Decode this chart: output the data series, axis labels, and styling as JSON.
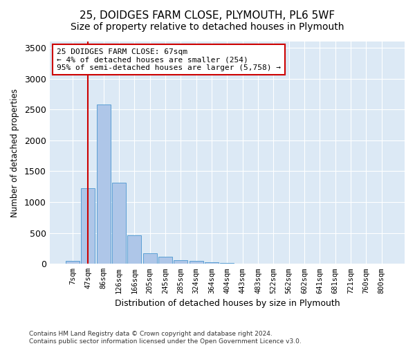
{
  "title": "25, DOIDGES FARM CLOSE, PLYMOUTH, PL6 5WF",
  "subtitle": "Size of property relative to detached houses in Plymouth",
  "xlabel": "Distribution of detached houses by size in Plymouth",
  "ylabel": "Number of detached properties",
  "categories": [
    "7sqm",
    "47sqm",
    "86sqm",
    "126sqm",
    "166sqm",
    "205sqm",
    "245sqm",
    "285sqm",
    "324sqm",
    "364sqm",
    "404sqm",
    "443sqm",
    "483sqm",
    "522sqm",
    "562sqm",
    "602sqm",
    "641sqm",
    "681sqm",
    "721sqm",
    "760sqm",
    "800sqm"
  ],
  "bar_values": [
    50,
    1220,
    2580,
    1310,
    460,
    175,
    110,
    60,
    45,
    30,
    15,
    5,
    0,
    0,
    0,
    0,
    0,
    0,
    0,
    0,
    0
  ],
  "bar_color": "#aec6e8",
  "bar_edgecolor": "#5a9fd4",
  "vline_x": 1.0,
  "vline_color": "#cc0000",
  "annotation_text": "25 DOIDGES FARM CLOSE: 67sqm\n← 4% of detached houses are smaller (254)\n95% of semi-detached houses are larger (5,758) →",
  "annotation_box_color": "#ffffff",
  "annotation_box_edgecolor": "#cc0000",
  "ylim": [
    0,
    3600
  ],
  "yticks": [
    0,
    500,
    1000,
    1500,
    2000,
    2500,
    3000,
    3500
  ],
  "bg_color": "#dce9f5",
  "footer_line1": "Contains HM Land Registry data © Crown copyright and database right 2024.",
  "footer_line2": "Contains public sector information licensed under the Open Government Licence v3.0.",
  "title_fontsize": 11,
  "subtitle_fontsize": 10
}
